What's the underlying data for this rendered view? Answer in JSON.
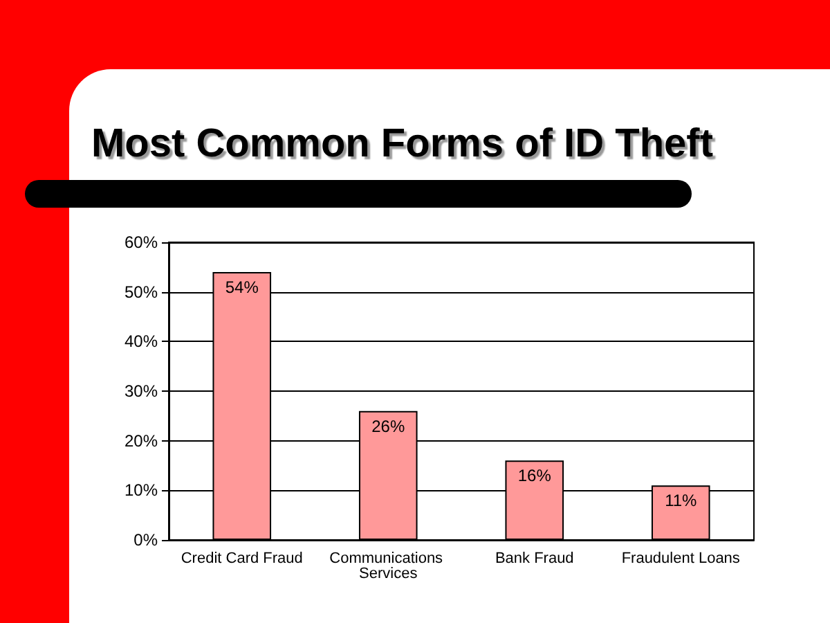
{
  "chart_data": {
    "type": "bar",
    "title": "Most Common Forms of ID Theft",
    "categories": [
      "Credit Card Fraud",
      "Communications Services",
      "Bank Fraud",
      "Fraudulent Loans"
    ],
    "values": [
      54,
      26,
      16,
      11
    ],
    "color": "#ff9999",
    "value_labels": [
      "54%",
      "26%",
      "16%",
      "11%"
    ],
    "ylim": [
      0,
      60
    ],
    "yticks": [
      {
        "value": 0,
        "label": "0%"
      },
      {
        "value": 10,
        "label": "10%"
      },
      {
        "value": 20,
        "label": "20%"
      },
      {
        "value": 30,
        "label": "30%"
      },
      {
        "value": 40,
        "label": "40%"
      },
      {
        "value": 50,
        "label": "50%"
      },
      {
        "value": 60,
        "label": "60%"
      }
    ],
    "grid": "y"
  }
}
